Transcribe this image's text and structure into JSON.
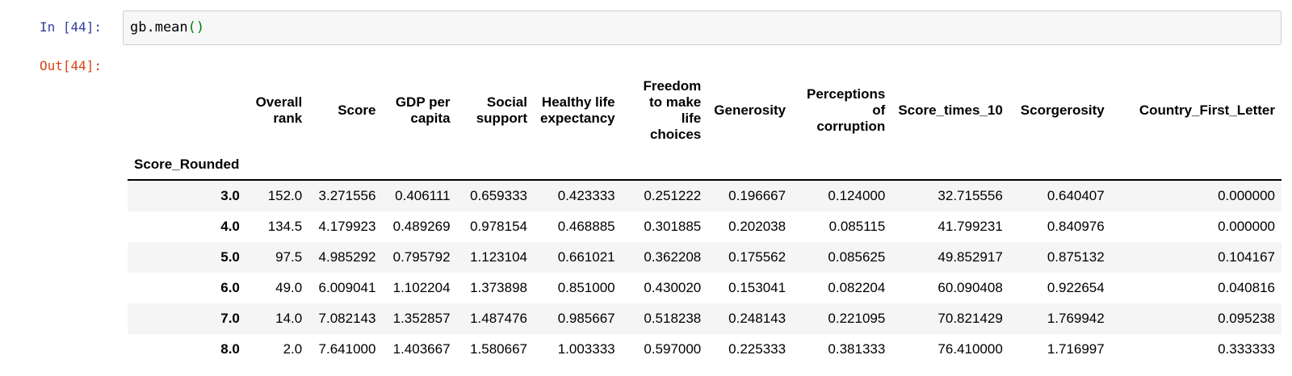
{
  "colors": {
    "input_prompt": "#303F9F",
    "output_prompt": "#D84315",
    "code_paren": "#008000",
    "row_stripe": "#f5f5f5"
  },
  "cell": {
    "input_prompt": "In [44]:",
    "output_prompt": "Out[44]:",
    "code_main": "gb.mean",
    "code_parens": "()"
  },
  "table": {
    "index_name": "Score_Rounded",
    "columns": [
      "Overall\nrank",
      "Score",
      "GDP per\ncapita",
      "Social\nsupport",
      "Healthy life\nexpectancy",
      "Freedom\nto make\nlife\nchoices",
      "Generosity",
      "Perceptions\nof\ncorruption",
      "Score_times_10",
      "Scorgerosity",
      "Country_First_Letter"
    ],
    "rows": [
      {
        "index": "3.0",
        "values": [
          "152.0",
          "3.271556",
          "0.406111",
          "0.659333",
          "0.423333",
          "0.251222",
          "0.196667",
          "0.124000",
          "32.715556",
          "0.640407",
          "0.000000"
        ]
      },
      {
        "index": "4.0",
        "values": [
          "134.5",
          "4.179923",
          "0.489269",
          "0.978154",
          "0.468885",
          "0.301885",
          "0.202038",
          "0.085115",
          "41.799231",
          "0.840976",
          "0.000000"
        ]
      },
      {
        "index": "5.0",
        "values": [
          "97.5",
          "4.985292",
          "0.795792",
          "1.123104",
          "0.661021",
          "0.362208",
          "0.175562",
          "0.085625",
          "49.852917",
          "0.875132",
          "0.104167"
        ]
      },
      {
        "index": "6.0",
        "values": [
          "49.0",
          "6.009041",
          "1.102204",
          "1.373898",
          "0.851000",
          "0.430020",
          "0.153041",
          "0.082204",
          "60.090408",
          "0.922654",
          "0.040816"
        ]
      },
      {
        "index": "7.0",
        "values": [
          "14.0",
          "7.082143",
          "1.352857",
          "1.487476",
          "0.985667",
          "0.518238",
          "0.248143",
          "0.221095",
          "70.821429",
          "1.769942",
          "0.095238"
        ]
      },
      {
        "index": "8.0",
        "values": [
          "2.0",
          "7.641000",
          "1.403667",
          "1.580667",
          "1.003333",
          "0.597000",
          "0.225333",
          "0.381333",
          "76.410000",
          "1.716997",
          "0.333333"
        ]
      }
    ]
  }
}
